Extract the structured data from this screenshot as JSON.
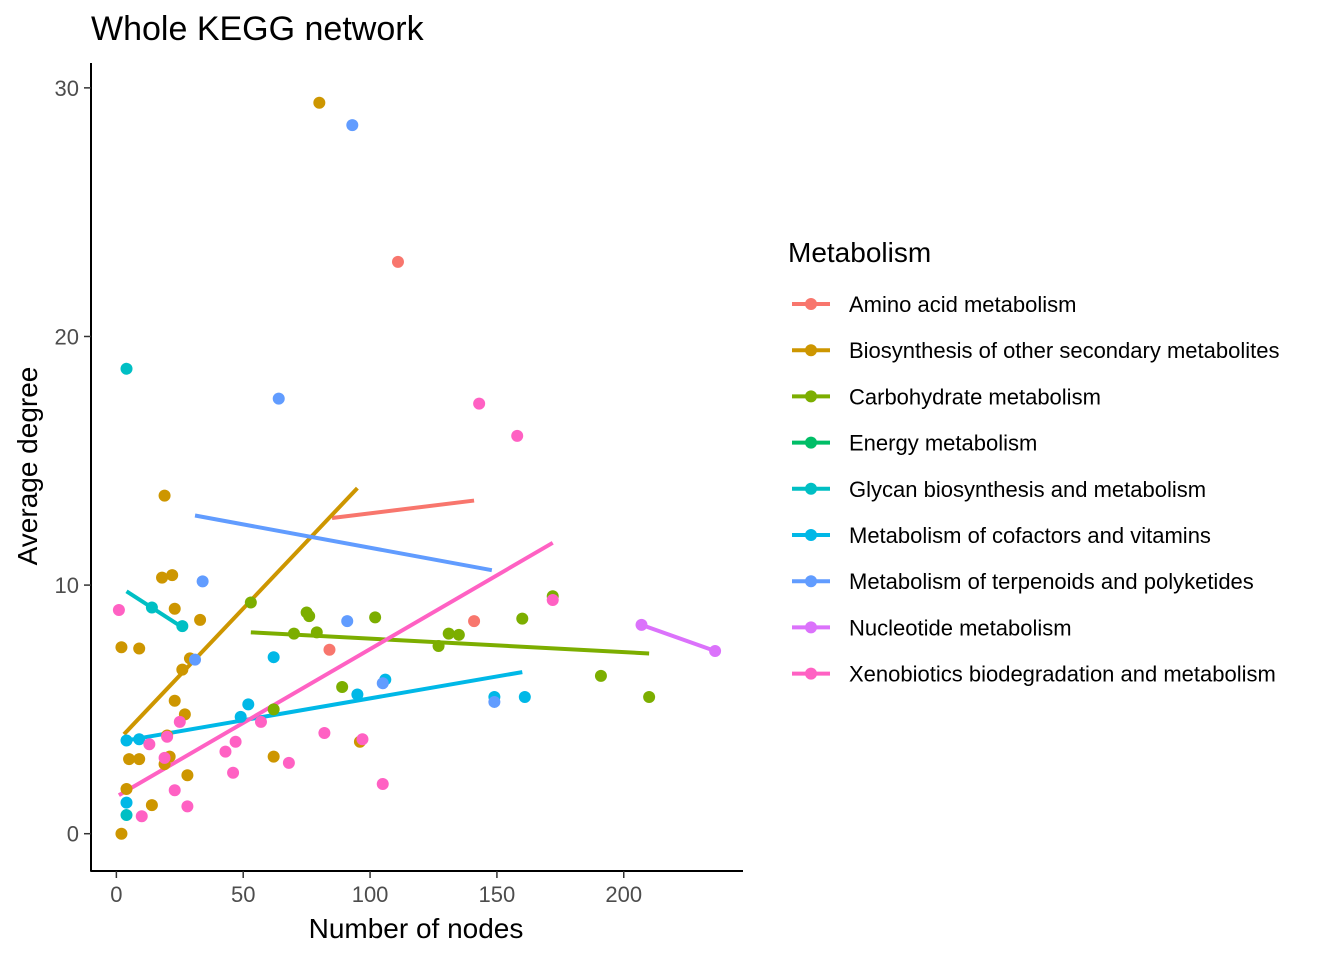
{
  "chart_data": {
    "type": "scatter",
    "title": "Whole KEGG network",
    "xlabel": "Number of nodes",
    "ylabel": "Average degree",
    "xlim": [
      -10,
      247
    ],
    "ylim": [
      -1.5,
      31
    ],
    "xticks": [
      0,
      50,
      100,
      150,
      200
    ],
    "yticks": [
      0,
      10,
      20,
      30
    ],
    "grid": false,
    "legend": {
      "title": "Metabolism",
      "position": "right"
    },
    "series": [
      {
        "name": "Amino acid metabolism",
        "color": "#F8766D",
        "points": [
          [
            111,
            23.0
          ],
          [
            141,
            8.55
          ],
          [
            84,
            7.4
          ]
        ],
        "trend": [
          [
            85,
            12.7
          ],
          [
            141,
            13.4
          ]
        ]
      },
      {
        "name": "Biosynthesis of other secondary metabolites",
        "color": "#CD9600",
        "points": [
          [
            80,
            29.4
          ],
          [
            19,
            13.6
          ],
          [
            22,
            10.4
          ],
          [
            18,
            10.3
          ],
          [
            23,
            9.05
          ],
          [
            33,
            8.6
          ],
          [
            2,
            7.5
          ],
          [
            9,
            7.45
          ],
          [
            29,
            7.05
          ],
          [
            26,
            6.6
          ],
          [
            23,
            5.35
          ],
          [
            27,
            4.8
          ],
          [
            20,
            3.95
          ],
          [
            21,
            3.1
          ],
          [
            62,
            3.1
          ],
          [
            5,
            3.0
          ],
          [
            9,
            3.0
          ],
          [
            19,
            2.8
          ],
          [
            28,
            2.35
          ],
          [
            96,
            3.7
          ],
          [
            4,
            1.8
          ],
          [
            14,
            1.15
          ],
          [
            2,
            0.0
          ]
        ],
        "trend": [
          [
            3,
            4.0
          ],
          [
            95,
            13.9
          ]
        ]
      },
      {
        "name": "Carbohydrate metabolism",
        "color": "#7CAE00",
        "points": [
          [
            172,
            9.55
          ],
          [
            53,
            9.3
          ],
          [
            75,
            8.9
          ],
          [
            76,
            8.75
          ],
          [
            102,
            8.7
          ],
          [
            160,
            8.65
          ],
          [
            79,
            8.1
          ],
          [
            70,
            8.05
          ],
          [
            131,
            8.05
          ],
          [
            135,
            8.0
          ],
          [
            127,
            7.55
          ],
          [
            191,
            6.35
          ],
          [
            89,
            5.9
          ],
          [
            210,
            5.5
          ],
          [
            62,
            5.0
          ]
        ],
        "trend": [
          [
            53,
            8.1
          ],
          [
            210,
            7.25
          ]
        ]
      },
      {
        "name": "Energy metabolism",
        "color": "#00BE67",
        "points": [],
        "trend": []
      },
      {
        "name": "Glycan biosynthesis and metabolism",
        "color": "#00BFC4",
        "points": [
          [
            4,
            18.7
          ],
          [
            14,
            9.1
          ],
          [
            26,
            8.35
          ],
          [
            4,
            0.75
          ]
        ],
        "trend": [
          [
            4,
            9.75
          ],
          [
            26,
            8.3
          ]
        ]
      },
      {
        "name": "Metabolism of cofactors and vitamins",
        "color": "#00B8E7",
        "points": [
          [
            62,
            7.1
          ],
          [
            106,
            6.2
          ],
          [
            52,
            5.2
          ],
          [
            95,
            5.6
          ],
          [
            149,
            5.5
          ],
          [
            161,
            5.5
          ],
          [
            49,
            4.7
          ],
          [
            4,
            3.75
          ],
          [
            9,
            3.8
          ],
          [
            4,
            1.25
          ]
        ],
        "trend": [
          [
            4,
            3.75
          ],
          [
            160,
            6.5
          ]
        ]
      },
      {
        "name": "Metabolism of terpenoids and polyketides",
        "color": "#619CFF",
        "points": [
          [
            93,
            28.5
          ],
          [
            64,
            17.5
          ],
          [
            34,
            10.15
          ],
          [
            91,
            8.55
          ],
          [
            31,
            7.0
          ],
          [
            105,
            6.05
          ],
          [
            149,
            5.3
          ]
        ],
        "trend": [
          [
            31,
            12.8
          ],
          [
            148,
            10.6
          ]
        ]
      },
      {
        "name": "Nucleotide metabolism",
        "color": "#DB72FB",
        "points": [
          [
            207,
            8.4
          ],
          [
            236,
            7.35
          ]
        ],
        "trend": [
          [
            207,
            8.4
          ],
          [
            236,
            7.35
          ]
        ]
      },
      {
        "name": "Xenobiotics biodegradation and metabolism",
        "color": "#FF61C3",
        "points": [
          [
            143,
            17.3
          ],
          [
            158,
            16.0
          ],
          [
            172,
            9.4
          ],
          [
            1,
            9.0
          ],
          [
            25,
            4.5
          ],
          [
            57,
            4.5
          ],
          [
            13,
            3.6
          ],
          [
            20,
            3.9
          ],
          [
            19,
            3.05
          ],
          [
            47,
            3.7
          ],
          [
            43,
            3.3
          ],
          [
            82,
            4.05
          ],
          [
            97,
            3.8
          ],
          [
            46,
            2.45
          ],
          [
            68,
            2.85
          ],
          [
            23,
            1.75
          ],
          [
            105,
            2.0
          ],
          [
            10,
            0.7
          ],
          [
            28,
            1.1
          ]
        ],
        "trend": [
          [
            1,
            1.55
          ],
          [
            172,
            11.7
          ]
        ]
      }
    ]
  }
}
